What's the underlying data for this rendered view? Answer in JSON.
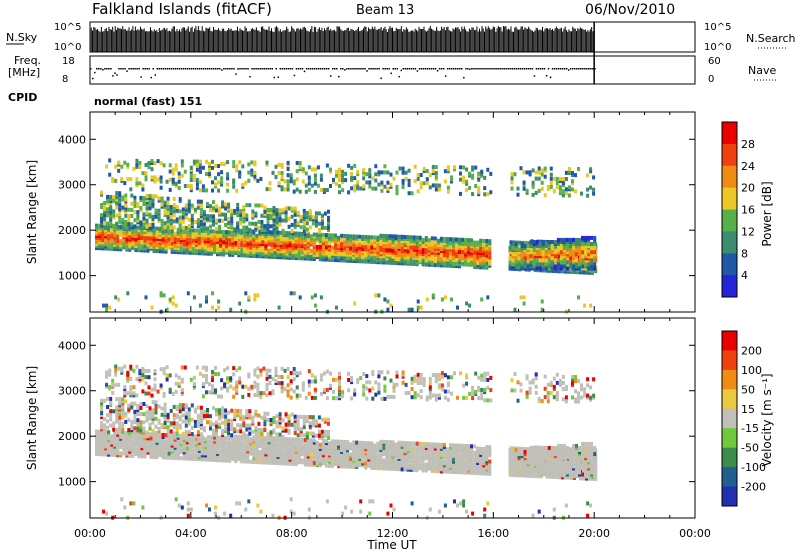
{
  "header": {
    "station": "Falkland Islands (fitACF)",
    "beam": "Beam 13",
    "date": "06/Nov/2010"
  },
  "small_panels": {
    "nsky_label": "N.Sky",
    "nsearch_label": "N.Search",
    "freq_label_1": "Freq.",
    "freq_label_2": "[MHz]",
    "nave_label": "Nave",
    "cpid_label": "CPID",
    "cpid_value": "normal (fast) 151",
    "count_ticks": [
      "10^5",
      "10^0"
    ],
    "freq_ticks": [
      "18",
      "8"
    ],
    "nave_ticks": [
      "60",
      "0"
    ]
  },
  "chart_data": [
    {
      "type": "heatmap",
      "name": "power",
      "ylabel": "Slant Range [km]",
      "xlabel": "",
      "ylim": [
        200,
        4600
      ],
      "yticks": [
        "1000",
        "2000",
        "3000",
        "4000"
      ],
      "colorbar_label": "Power [dB]",
      "colorbar_ticks": [
        "28",
        "24",
        "20",
        "16",
        "12",
        "8",
        "4"
      ],
      "colors": [
        "#2424d8",
        "#1f58a8",
        "#3c8c6e",
        "#58b04c",
        "#ecc824",
        "#f08c14",
        "#f04010",
        "#e80000"
      ]
    },
    {
      "type": "heatmap",
      "name": "velocity",
      "ylabel": "Slant Range [km]",
      "xlabel": "Time UT",
      "ylim": [
        200,
        4600
      ],
      "yticks": [
        "1000",
        "2000",
        "3000",
        "4000"
      ],
      "xticks": [
        "00:00",
        "04:00",
        "08:00",
        "12:00",
        "16:00",
        "20:00",
        "00:00"
      ],
      "xlim_hours": [
        0,
        24
      ],
      "colorbar_label": "Velocity [m s⁻¹]",
      "colorbar_ticks": [
        "200",
        "100",
        "50",
        "15",
        "-15",
        "-50",
        "-100",
        "-200"
      ],
      "colors": [
        "#2030b0",
        "#1f6090",
        "#3c8c4c",
        "#70c83c",
        "#c0c0b8",
        "#ecc840",
        "#f08c14",
        "#f04010",
        "#e80000"
      ]
    }
  ]
}
